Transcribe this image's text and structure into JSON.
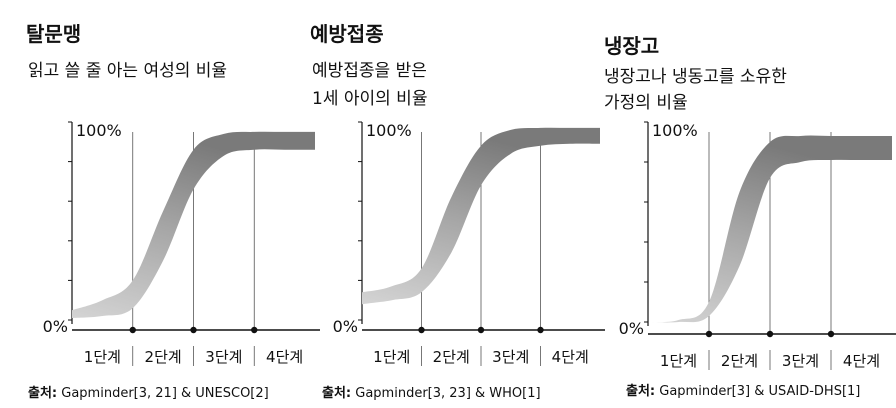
{
  "chart_data": [
    {
      "type": "area",
      "title": "탈문맹",
      "subtitle": [
        "읽고 쓸 줄 아는 여성의 비율"
      ],
      "y_top_label": "100%",
      "y_bottom_label": "0%",
      "categories": [
        "1단계",
        "2단계",
        "3단계",
        "4단계"
      ],
      "source_prefix": "출처:",
      "source_text": "Gapminder[3, 21] & UNESCO[2]",
      "series": [
        {
          "x": [
            0,
            0.5,
            1,
            1.5,
            2,
            2.5,
            3,
            3.5,
            4
          ],
          "low": [
            1,
            2,
            6,
            30,
            66,
            83,
            86,
            86,
            86
          ],
          "high": [
            5,
            10,
            20,
            55,
            86,
            94,
            95,
            95,
            95
          ]
        }
      ],
      "ylim": [
        0,
        100
      ]
    },
    {
      "type": "area",
      "title": "예방접종",
      "subtitle": [
        "예방접종을 받은",
        "1세 아이의 비율"
      ],
      "y_top_label": "100%",
      "y_bottom_label": "0%",
      "categories": [
        "1단계",
        "2단계",
        "3단계",
        "4단계"
      ],
      "source_prefix": "출처:",
      "source_text": "Gapminder[3, 23] & WHO[1]",
      "series": [
        {
          "x": [
            0,
            0.5,
            1,
            1.5,
            2,
            2.5,
            3,
            3.5,
            4
          ],
          "low": [
            8,
            10,
            14,
            34,
            68,
            84,
            88,
            89,
            89
          ],
          "high": [
            14,
            17,
            26,
            62,
            88,
            96,
            97,
            97,
            97
          ]
        }
      ],
      "ylim": [
        0,
        100
      ]
    },
    {
      "type": "area",
      "title": "냉장고",
      "subtitle": [
        "냉장고나 냉동고를 소유한",
        "가정의 비율"
      ],
      "y_top_label": "100%",
      "y_bottom_label": "0%",
      "categories": [
        "1단계",
        "2단계",
        "3단계",
        "4단계"
      ],
      "source_prefix": "출처:",
      "source_text": "Gapminder[3] & USAID-DHS[1]",
      "series": [
        {
          "x": [
            0,
            0.5,
            1,
            1.5,
            2,
            2.5,
            3,
            3.5,
            4
          ],
          "low": [
            0,
            0,
            3,
            28,
            72,
            80,
            81,
            81,
            81
          ],
          "high": [
            0,
            1,
            10,
            65,
            90,
            93,
            93,
            93,
            93
          ]
        }
      ],
      "ylim": [
        0,
        100
      ]
    }
  ]
}
